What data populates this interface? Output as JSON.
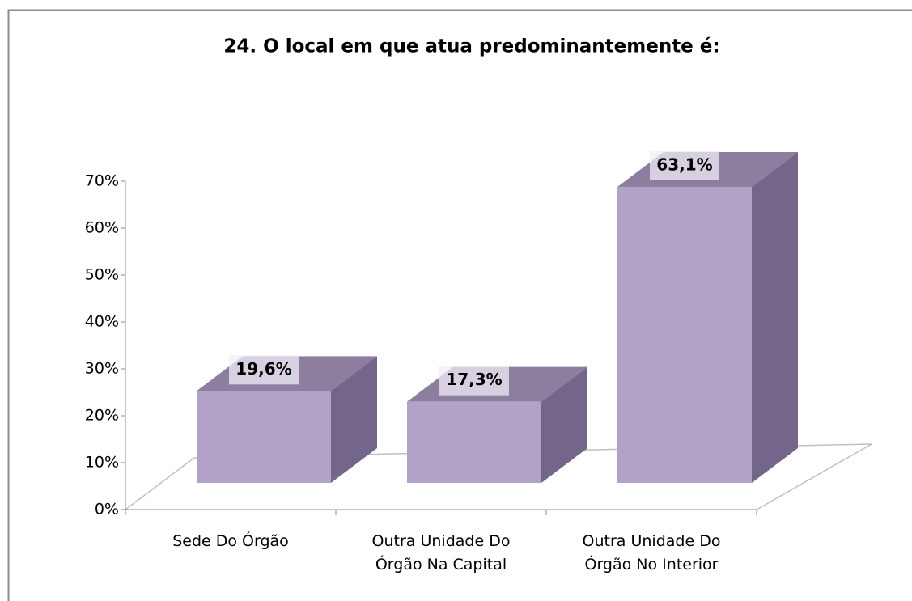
{
  "chart_data": {
    "type": "bar3d",
    "title": "24. O local em que atua predominantemente é:",
    "categories": [
      "Sede Do Órgão",
      "Outra Unidade Do Órgão Na Capital",
      "Outra Unidade Do Órgão No Interior"
    ],
    "values": [
      19.6,
      17.3,
      63.1
    ],
    "value_labels": [
      "19,6%",
      "17,3%",
      "63,1%"
    ],
    "color": "#b3a2c7",
    "ylim": [
      0,
      70
    ],
    "yticks": [
      {
        "value": 0,
        "label": "0%"
      },
      {
        "value": 10,
        "label": "10%"
      },
      {
        "value": 20,
        "label": "20%"
      },
      {
        "value": 30,
        "label": "30%"
      },
      {
        "value": 40,
        "label": "40%"
      },
      {
        "value": 50,
        "label": "50%"
      },
      {
        "value": 60,
        "label": "60%"
      },
      {
        "value": 70,
        "label": "70%"
      }
    ]
  }
}
